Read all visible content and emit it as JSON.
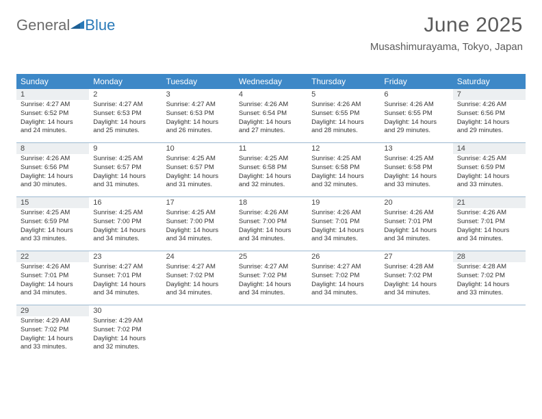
{
  "logo": {
    "text1": "General",
    "text2": "Blue"
  },
  "title": "June 2025",
  "location": "Musashimurayama, Tokyo, Japan",
  "colors": {
    "header_bg": "#3d88c7",
    "header_text": "#ffffff",
    "shaded_bg": "#eceff1",
    "week_border": "#9bb8d0",
    "logo_blue": "#2a7ab8",
    "logo_gray": "#6b6b6b"
  },
  "columns": [
    "Sunday",
    "Monday",
    "Tuesday",
    "Wednesday",
    "Thursday",
    "Friday",
    "Saturday"
  ],
  "shaded_cols": [
    0,
    6
  ],
  "last_day": 30,
  "days": [
    {
      "n": 1,
      "sr": "4:27 AM",
      "ss": "6:52 PM",
      "dl": "14 hours and 24 minutes."
    },
    {
      "n": 2,
      "sr": "4:27 AM",
      "ss": "6:53 PM",
      "dl": "14 hours and 25 minutes."
    },
    {
      "n": 3,
      "sr": "4:27 AM",
      "ss": "6:53 PM",
      "dl": "14 hours and 26 minutes."
    },
    {
      "n": 4,
      "sr": "4:26 AM",
      "ss": "6:54 PM",
      "dl": "14 hours and 27 minutes."
    },
    {
      "n": 5,
      "sr": "4:26 AM",
      "ss": "6:55 PM",
      "dl": "14 hours and 28 minutes."
    },
    {
      "n": 6,
      "sr": "4:26 AM",
      "ss": "6:55 PM",
      "dl": "14 hours and 29 minutes."
    },
    {
      "n": 7,
      "sr": "4:26 AM",
      "ss": "6:56 PM",
      "dl": "14 hours and 29 minutes."
    },
    {
      "n": 8,
      "sr": "4:26 AM",
      "ss": "6:56 PM",
      "dl": "14 hours and 30 minutes."
    },
    {
      "n": 9,
      "sr": "4:25 AM",
      "ss": "6:57 PM",
      "dl": "14 hours and 31 minutes."
    },
    {
      "n": 10,
      "sr": "4:25 AM",
      "ss": "6:57 PM",
      "dl": "14 hours and 31 minutes."
    },
    {
      "n": 11,
      "sr": "4:25 AM",
      "ss": "6:58 PM",
      "dl": "14 hours and 32 minutes."
    },
    {
      "n": 12,
      "sr": "4:25 AM",
      "ss": "6:58 PM",
      "dl": "14 hours and 32 minutes."
    },
    {
      "n": 13,
      "sr": "4:25 AM",
      "ss": "6:58 PM",
      "dl": "14 hours and 33 minutes."
    },
    {
      "n": 14,
      "sr": "4:25 AM",
      "ss": "6:59 PM",
      "dl": "14 hours and 33 minutes."
    },
    {
      "n": 15,
      "sr": "4:25 AM",
      "ss": "6:59 PM",
      "dl": "14 hours and 33 minutes."
    },
    {
      "n": 16,
      "sr": "4:25 AM",
      "ss": "7:00 PM",
      "dl": "14 hours and 34 minutes."
    },
    {
      "n": 17,
      "sr": "4:25 AM",
      "ss": "7:00 PM",
      "dl": "14 hours and 34 minutes."
    },
    {
      "n": 18,
      "sr": "4:26 AM",
      "ss": "7:00 PM",
      "dl": "14 hours and 34 minutes."
    },
    {
      "n": 19,
      "sr": "4:26 AM",
      "ss": "7:01 PM",
      "dl": "14 hours and 34 minutes."
    },
    {
      "n": 20,
      "sr": "4:26 AM",
      "ss": "7:01 PM",
      "dl": "14 hours and 34 minutes."
    },
    {
      "n": 21,
      "sr": "4:26 AM",
      "ss": "7:01 PM",
      "dl": "14 hours and 34 minutes."
    },
    {
      "n": 22,
      "sr": "4:26 AM",
      "ss": "7:01 PM",
      "dl": "14 hours and 34 minutes."
    },
    {
      "n": 23,
      "sr": "4:27 AM",
      "ss": "7:01 PM",
      "dl": "14 hours and 34 minutes."
    },
    {
      "n": 24,
      "sr": "4:27 AM",
      "ss": "7:02 PM",
      "dl": "14 hours and 34 minutes."
    },
    {
      "n": 25,
      "sr": "4:27 AM",
      "ss": "7:02 PM",
      "dl": "14 hours and 34 minutes."
    },
    {
      "n": 26,
      "sr": "4:27 AM",
      "ss": "7:02 PM",
      "dl": "14 hours and 34 minutes."
    },
    {
      "n": 27,
      "sr": "4:28 AM",
      "ss": "7:02 PM",
      "dl": "14 hours and 34 minutes."
    },
    {
      "n": 28,
      "sr": "4:28 AM",
      "ss": "7:02 PM",
      "dl": "14 hours and 33 minutes."
    },
    {
      "n": 29,
      "sr": "4:29 AM",
      "ss": "7:02 PM",
      "dl": "14 hours and 33 minutes."
    },
    {
      "n": 30,
      "sr": "4:29 AM",
      "ss": "7:02 PM",
      "dl": "14 hours and 32 minutes."
    }
  ],
  "labels": {
    "sunrise": "Sunrise:",
    "sunset": "Sunset:",
    "daylight": "Daylight:"
  }
}
